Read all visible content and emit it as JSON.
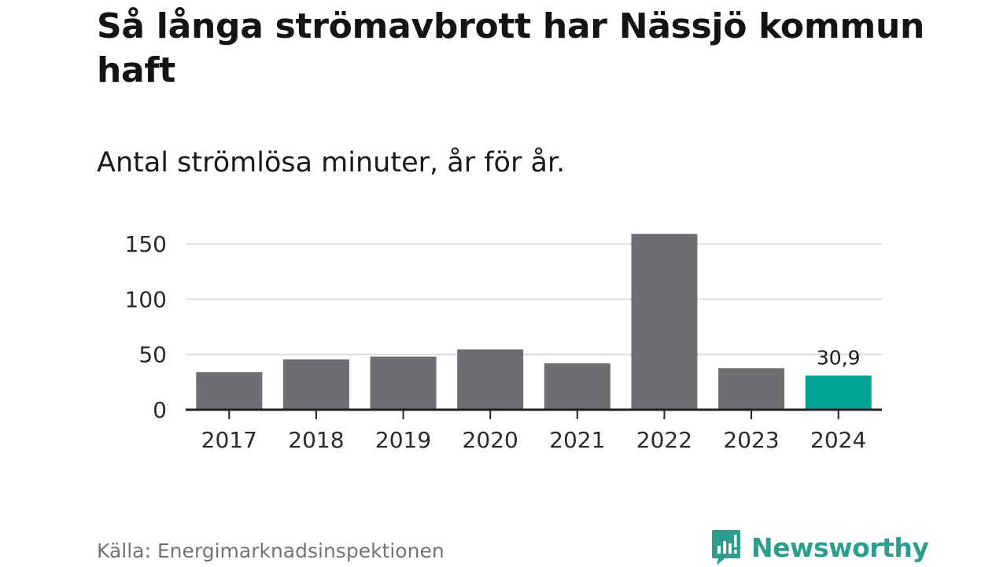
{
  "title": "Så långa strömavbrott har Nässjö kommun haft",
  "subtitle": "Antal strömlösa minuter, år för år.",
  "source": "Källa: Energimarknadsinspektionen",
  "brand": {
    "name": "Newsworthy",
    "color": "#2f9d8e",
    "icon": "bar-chart-speech-bubble-icon"
  },
  "colors": {
    "bar": "#6e6d72",
    "highlight": "#00a497",
    "grid": "#dcdcdc",
    "axis": "#222222"
  },
  "chart_data": {
    "type": "bar",
    "title": "Så långa strömavbrott har Nässjö kommun haft",
    "subtitle": "Antal strömlösa minuter, år för år.",
    "xlabel": "",
    "ylabel": "",
    "categories": [
      "2017",
      "2018",
      "2019",
      "2020",
      "2021",
      "2022",
      "2023",
      "2024"
    ],
    "values": [
      34,
      45.5,
      48,
      54.5,
      42,
      159,
      37.5,
      30.9
    ],
    "ylim": [
      0,
      160
    ],
    "yticks": [
      0,
      50,
      100,
      150
    ],
    "ytick_labels": [
      "0",
      "50",
      "100",
      "150"
    ],
    "grid": true,
    "legend": false,
    "highlight_category": "2024",
    "data_labels": [
      {
        "category": "2024",
        "text": "30,9"
      }
    ]
  }
}
